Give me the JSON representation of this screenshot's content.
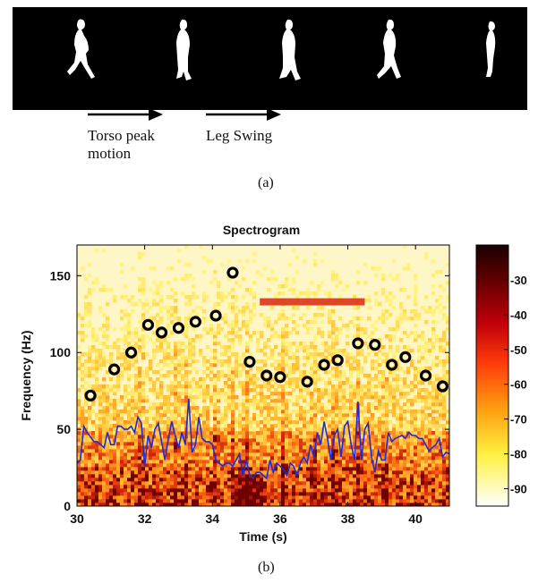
{
  "panel_a": {
    "label": "(a)",
    "annotations": [
      {
        "text_line1": "Torso peak",
        "text_line2": "motion"
      },
      {
        "text_line1": "Leg Swing",
        "text_line2": ""
      }
    ]
  },
  "panel_b": {
    "label": "(b)"
  },
  "colors": {
    "curve": "#1f2bd6",
    "markers": "#000000",
    "band": "#d9341a"
  },
  "chart_data": {
    "type": "heatmap",
    "title": "Spectrogram",
    "xlabel": "Time (s)",
    "ylabel": "Frequency (Hz)",
    "xlim": [
      30,
      41
    ],
    "ylim": [
      0,
      170
    ],
    "x_ticks": [
      30,
      32,
      34,
      36,
      38,
      40
    ],
    "x_tick_labels": [
      "30",
      "32",
      "34",
      "36",
      "38",
      "40"
    ],
    "y_ticks": [
      0,
      50,
      100,
      150
    ],
    "y_tick_labels": [
      "0",
      "50",
      "100",
      "150"
    ],
    "colorbar": {
      "range": [
        -95,
        -20
      ],
      "ticks": [
        -30,
        -40,
        -50,
        -60,
        -70,
        -80,
        -90
      ],
      "tick_labels": [
        "-30",
        "-40",
        "-50",
        "-60",
        "-70",
        "-80",
        "-90"
      ]
    },
    "series": [
      {
        "type": "scatter",
        "x": [
          30.4,
          31.1,
          31.6,
          32.1,
          32.5,
          33.0,
          33.5,
          34.1,
          34.6,
          35.1,
          35.6,
          36.0,
          36.8,
          37.3,
          37.7,
          38.3,
          38.8,
          39.3,
          39.7,
          40.3,
          40.8
        ],
        "y": [
          72,
          89,
          100,
          118,
          113,
          116,
          120,
          124,
          152,
          94,
          85,
          84,
          81,
          92,
          95,
          106,
          105,
          92,
          97,
          85,
          78
        ]
      },
      {
        "type": "line",
        "x": [
          30.0,
          30.1,
          30.2,
          30.3,
          30.4,
          30.5,
          30.6,
          30.7,
          30.8,
          30.9,
          31.0,
          31.1,
          31.2,
          31.3,
          31.4,
          31.5,
          31.6,
          31.7,
          31.8,
          31.9,
          32.0,
          32.1,
          32.2,
          32.3,
          32.4,
          32.5,
          32.6,
          32.7,
          32.8,
          32.9,
          33.0,
          33.1,
          33.2,
          33.3,
          33.4,
          33.5,
          33.6,
          33.7,
          33.8,
          33.9,
          34.0,
          34.1,
          34.2,
          34.3,
          34.4,
          34.5,
          34.6,
          34.7,
          34.8,
          34.9,
          35.0,
          35.1,
          35.2,
          35.3,
          35.4,
          35.5,
          35.6,
          35.7,
          35.8,
          35.9,
          36.0,
          36.1,
          36.2,
          36.3,
          36.4,
          36.5,
          36.6,
          36.7,
          36.8,
          36.9,
          37.0,
          37.1,
          37.2,
          37.3,
          37.4,
          37.5,
          37.6,
          37.7,
          37.8,
          37.9,
          38.0,
          38.1,
          38.2,
          38.3,
          38.4,
          38.5,
          38.6,
          38.7,
          38.8,
          38.9,
          39.0,
          39.1,
          39.2,
          39.3,
          39.4,
          39.5,
          39.6,
          39.7,
          39.8,
          39.9,
          40.0,
          40.1,
          40.2,
          40.3,
          40.4,
          40.5,
          40.6,
          40.7,
          40.8,
          40.9,
          41.0
        ],
        "y": [
          28,
          30,
          52,
          48,
          45,
          42,
          42,
          40,
          38,
          48,
          40,
          40,
          52,
          52,
          50,
          50,
          52,
          48,
          58,
          54,
          26,
          46,
          38,
          50,
          54,
          42,
          30,
          44,
          55,
          46,
          38,
          48,
          40,
          70,
          35,
          40,
          58,
          44,
          42,
          42,
          40,
          30,
          28,
          26,
          28,
          28,
          26,
          30,
          34,
          20,
          30,
          20,
          18,
          22,
          22,
          20,
          18,
          30,
          22,
          28,
          26,
          24,
          20,
          28,
          26,
          20,
          28,
          32,
          28,
          40,
          32,
          48,
          40,
          55,
          44,
          30,
          46,
          50,
          32,
          52,
          55,
          40,
          30,
          68,
          30,
          50,
          54,
          32,
          22,
          36,
          30,
          30,
          48,
          42,
          44,
          45,
          46,
          44,
          48,
          46,
          46,
          44,
          44,
          40,
          36,
          38,
          40,
          44,
          32,
          35,
          34
        ]
      }
    ],
    "annotations": [
      {
        "type": "horizontal-band",
        "x_start": 35.4,
        "x_end": 38.5,
        "y": 133
      }
    ]
  }
}
